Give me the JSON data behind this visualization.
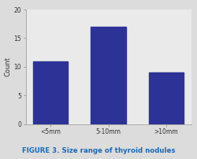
{
  "categories": [
    "<5mm",
    "5-10mm",
    ">10mm"
  ],
  "values": [
    11,
    17,
    9
  ],
  "bar_color": "#2d3396",
  "ylabel": "Count",
  "ylim": [
    0,
    20
  ],
  "yticks": [
    0,
    5,
    10,
    15,
    20
  ],
  "plot_bg_color": "#eaeaea",
  "fig_bg_color": "#dcdcdc",
  "caption": "FIGURE 3. Size range of thyroid nodules",
  "caption_color": "#1a6ab5",
  "bar_width": 0.6
}
